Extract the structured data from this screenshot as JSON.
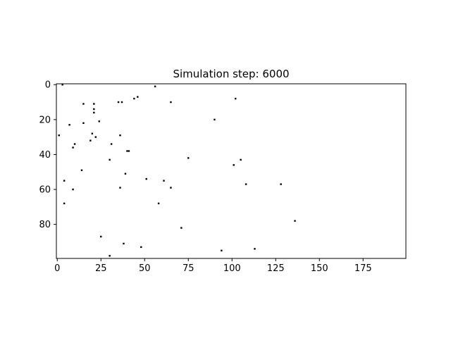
{
  "chart_data": {
    "type": "scatter",
    "title": "Simulation step: 6000",
    "xlabel": "",
    "ylabel": "",
    "xlim": [
      -0.5,
      199.5
    ],
    "ylim": [
      99.5,
      -0.5
    ],
    "y_inverted": true,
    "grid": false,
    "legend": "none",
    "marker_color": "#000000",
    "background_color": "#ffffff",
    "x_ticks": [
      0,
      25,
      50,
      75,
      100,
      125,
      150,
      175
    ],
    "x_tick_labels": [
      "0",
      "25",
      "50",
      "75",
      "100",
      "125",
      "150",
      "175"
    ],
    "y_ticks": [
      0,
      20,
      40,
      60,
      80
    ],
    "y_tick_labels": [
      "0",
      "20",
      "40",
      "60",
      "80"
    ],
    "points": [
      {
        "x": 3,
        "y": 0
      },
      {
        "x": 56,
        "y": 1
      },
      {
        "x": 102,
        "y": 8
      },
      {
        "x": 44,
        "y": 8
      },
      {
        "x": 46,
        "y": 7
      },
      {
        "x": 35,
        "y": 10
      },
      {
        "x": 37,
        "y": 10
      },
      {
        "x": 65,
        "y": 10
      },
      {
        "x": 15,
        "y": 11
      },
      {
        "x": 21,
        "y": 11
      },
      {
        "x": 21,
        "y": 14
      },
      {
        "x": 21,
        "y": 16
      },
      {
        "x": 90,
        "y": 20
      },
      {
        "x": 24,
        "y": 21
      },
      {
        "x": 15,
        "y": 22
      },
      {
        "x": 7,
        "y": 23
      },
      {
        "x": 20,
        "y": 28
      },
      {
        "x": 36,
        "y": 29
      },
      {
        "x": 1,
        "y": 29
      },
      {
        "x": 22,
        "y": 30
      },
      {
        "x": 19,
        "y": 32
      },
      {
        "x": 31,
        "y": 34
      },
      {
        "x": 10,
        "y": 34
      },
      {
        "x": 9,
        "y": 36
      },
      {
        "x": 40,
        "y": 38
      },
      {
        "x": 41,
        "y": 38
      },
      {
        "x": 75,
        "y": 42
      },
      {
        "x": 105,
        "y": 43
      },
      {
        "x": 30,
        "y": 43
      },
      {
        "x": 101,
        "y": 46
      },
      {
        "x": 14,
        "y": 49
      },
      {
        "x": 39,
        "y": 51
      },
      {
        "x": 51,
        "y": 54
      },
      {
        "x": 61,
        "y": 55
      },
      {
        "x": 4,
        "y": 55
      },
      {
        "x": 108,
        "y": 57
      },
      {
        "x": 128,
        "y": 57
      },
      {
        "x": 36,
        "y": 59
      },
      {
        "x": 65,
        "y": 59
      },
      {
        "x": 9,
        "y": 60
      },
      {
        "x": 58,
        "y": 68
      },
      {
        "x": 4,
        "y": 68
      },
      {
        "x": 136,
        "y": 78
      },
      {
        "x": 71,
        "y": 82
      },
      {
        "x": 25,
        "y": 87
      },
      {
        "x": 38,
        "y": 91
      },
      {
        "x": 48,
        "y": 93
      },
      {
        "x": 94,
        "y": 95
      },
      {
        "x": 113,
        "y": 94
      },
      {
        "x": 30,
        "y": 98
      }
    ]
  }
}
